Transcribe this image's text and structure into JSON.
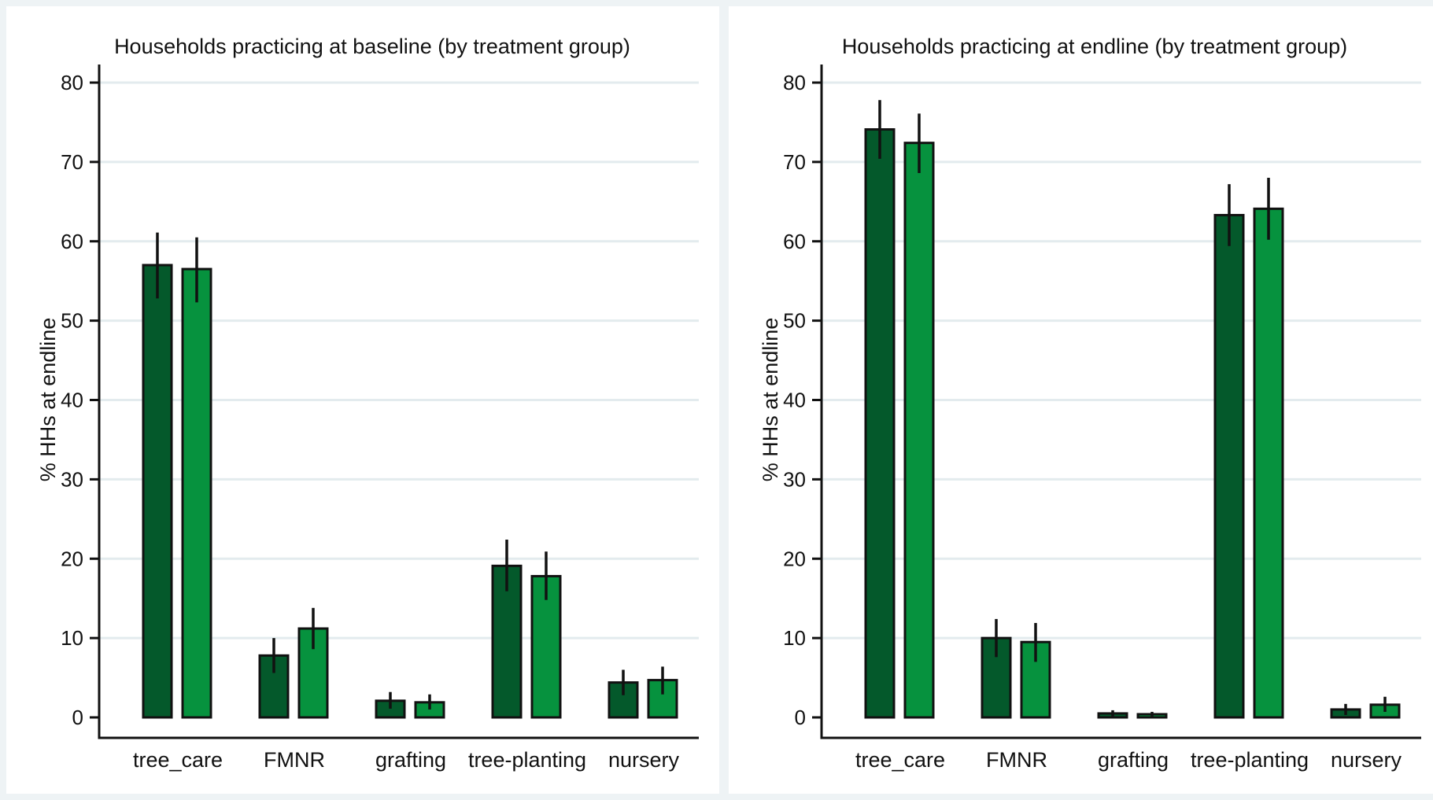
{
  "chart_data": [
    {
      "type": "bar",
      "title": "Households practicing at baseline (by treatment group)",
      "xlabel": "",
      "ylabel": "% HHs at endline",
      "ylim": [
        0,
        80
      ],
      "yticks": [
        0,
        10,
        20,
        30,
        40,
        50,
        60,
        70,
        80
      ],
      "grid": true,
      "categories": [
        "tree_care",
        "FMNR",
        "grafting",
        "tree-planting",
        "nursery"
      ],
      "series": [
        {
          "color": "#04592b",
          "values": [
            57,
            7.8,
            2.1,
            19.1,
            4.4
          ],
          "err_low": [
            52.8,
            5.6,
            1.1,
            15.9,
            2.8
          ],
          "err_high": [
            61.1,
            10.0,
            3.2,
            22.4,
            6.0
          ]
        },
        {
          "color": "#06923e",
          "values": [
            56.5,
            11.2,
            1.9,
            17.8,
            4.7
          ],
          "err_low": [
            52.3,
            8.6,
            1.0,
            14.8,
            2.9
          ],
          "err_high": [
            60.5,
            13.8,
            2.9,
            20.9,
            6.4
          ]
        }
      ]
    },
    {
      "type": "bar",
      "title": "Households practicing at endline (by treatment group)",
      "xlabel": "",
      "ylabel": "% HHs at endline",
      "ylim": [
        0,
        80
      ],
      "yticks": [
        0,
        10,
        20,
        30,
        40,
        50,
        60,
        70,
        80
      ],
      "grid": true,
      "categories": [
        "tree_care",
        "FMNR",
        "grafting",
        "tree-planting",
        "nursery"
      ],
      "series": [
        {
          "color": "#04592b",
          "values": [
            74.1,
            10.0,
            0.5,
            63.3,
            1.0
          ],
          "err_low": [
            70.4,
            7.6,
            0.1,
            59.4,
            0.3
          ],
          "err_high": [
            77.8,
            12.4,
            0.9,
            67.2,
            1.7
          ]
        },
        {
          "color": "#06923e",
          "values": [
            72.4,
            9.5,
            0.4,
            64.1,
            1.6
          ],
          "err_low": [
            68.6,
            7.0,
            0.1,
            60.2,
            0.7
          ],
          "err_high": [
            76.1,
            11.9,
            0.7,
            68.0,
            2.6
          ]
        }
      ]
    }
  ]
}
